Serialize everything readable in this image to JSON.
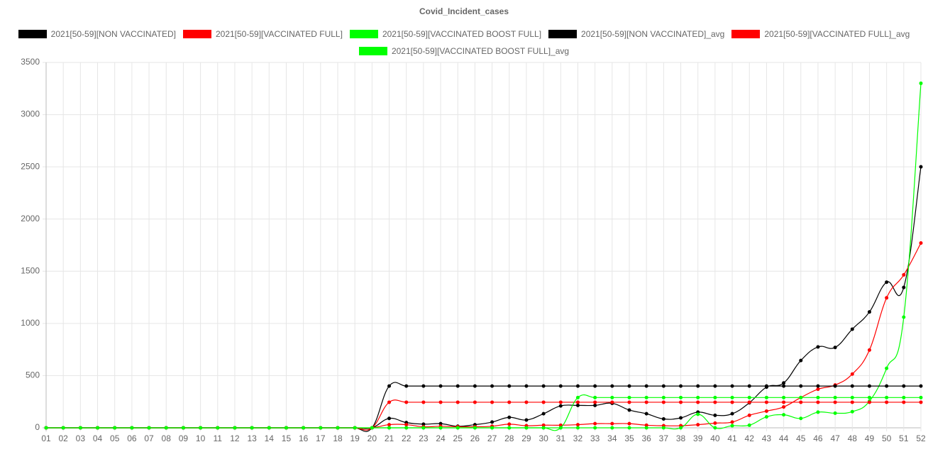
{
  "chart_data": {
    "type": "line",
    "title": "Covid_Incident_cases",
    "categories": [
      "01",
      "02",
      "03",
      "04",
      "05",
      "06",
      "07",
      "08",
      "09",
      "10",
      "11",
      "12",
      "13",
      "14",
      "15",
      "16",
      "17",
      "18",
      "19",
      "20",
      "21",
      "22",
      "23",
      "24",
      "25",
      "26",
      "27",
      "28",
      "29",
      "30",
      "31",
      "32",
      "33",
      "34",
      "35",
      "36",
      "37",
      "38",
      "39",
      "40",
      "41",
      "42",
      "43",
      "44",
      "45",
      "46",
      "47",
      "48",
      "49",
      "50",
      "51",
      "52"
    ],
    "ylim": [
      0,
      3500
    ],
    "yticks": [
      0,
      500,
      1000,
      1500,
      2000,
      2500,
      3000,
      3500
    ],
    "grid": true,
    "series": [
      {
        "name": "2021[50-59][NON VACCINATED]",
        "color": "#000000",
        "values": [
          0,
          0,
          0,
          0,
          0,
          0,
          0,
          0,
          0,
          0,
          0,
          0,
          0,
          0,
          0,
          0,
          0,
          0,
          0,
          0,
          90,
          50,
          35,
          40,
          15,
          30,
          55,
          100,
          75,
          135,
          210,
          215,
          215,
          235,
          170,
          135,
          85,
          95,
          150,
          120,
          135,
          240,
          390,
          430,
          645,
          775,
          770,
          945,
          1110,
          1395,
          1345,
          2500
        ]
      },
      {
        "name": "2021[50-59][VACCINATED FULL]",
        "color": "#ff0000",
        "values": [
          0,
          0,
          0,
          0,
          0,
          0,
          0,
          0,
          0,
          0,
          0,
          0,
          0,
          0,
          0,
          0,
          0,
          0,
          0,
          0,
          30,
          30,
          10,
          15,
          10,
          10,
          15,
          35,
          20,
          25,
          25,
          30,
          40,
          40,
          40,
          25,
          20,
          20,
          30,
          45,
          55,
          120,
          160,
          200,
          290,
          370,
          410,
          515,
          745,
          1245,
          1465,
          1770
        ]
      },
      {
        "name": "2021[50-59][VACCINATED BOOST FULL]",
        "color": "#00ff00",
        "values": [
          0,
          0,
          0,
          0,
          0,
          0,
          0,
          0,
          0,
          0,
          0,
          0,
          0,
          0,
          0,
          0,
          0,
          0,
          0,
          0,
          0,
          0,
          0,
          0,
          0,
          0,
          0,
          0,
          0,
          0,
          0,
          0,
          0,
          0,
          0,
          0,
          0,
          0,
          130,
          0,
          20,
          25,
          105,
          125,
          90,
          150,
          140,
          155,
          255,
          570,
          1060,
          3300
        ]
      },
      {
        "name": "2021[50-59][NON VACCINATED]_avg",
        "color": "#000000",
        "values": [
          0,
          0,
          0,
          0,
          0,
          0,
          0,
          0,
          0,
          0,
          0,
          0,
          0,
          0,
          0,
          0,
          0,
          0,
          0,
          0,
          400,
          400,
          400,
          400,
          400,
          400,
          400,
          400,
          400,
          400,
          400,
          400,
          400,
          400,
          400,
          400,
          400,
          400,
          400,
          400,
          400,
          400,
          400,
          400,
          400,
          400,
          400,
          400,
          400,
          400,
          400,
          400
        ]
      },
      {
        "name": "2021[50-59][VACCINATED FULL]_avg",
        "color": "#ff0000",
        "values": [
          0,
          0,
          0,
          0,
          0,
          0,
          0,
          0,
          0,
          0,
          0,
          0,
          0,
          0,
          0,
          0,
          0,
          0,
          0,
          0,
          245,
          245,
          245,
          245,
          245,
          245,
          245,
          245,
          245,
          245,
          245,
          245,
          245,
          245,
          245,
          245,
          245,
          245,
          245,
          245,
          245,
          245,
          245,
          245,
          245,
          245,
          245,
          245,
          245,
          245,
          245,
          245
        ]
      },
      {
        "name": "2021[50-59][VACCINATED BOOST FULL]_avg",
        "color": "#00ff00",
        "values": [
          0,
          0,
          0,
          0,
          0,
          0,
          0,
          0,
          0,
          0,
          0,
          0,
          0,
          0,
          0,
          0,
          0,
          0,
          0,
          0,
          0,
          0,
          0,
          0,
          0,
          0,
          0,
          0,
          0,
          0,
          0,
          290,
          290,
          290,
          290,
          290,
          290,
          290,
          290,
          290,
          290,
          290,
          290,
          290,
          290,
          290,
          290,
          290,
          290,
          290,
          290,
          290
        ]
      }
    ]
  }
}
